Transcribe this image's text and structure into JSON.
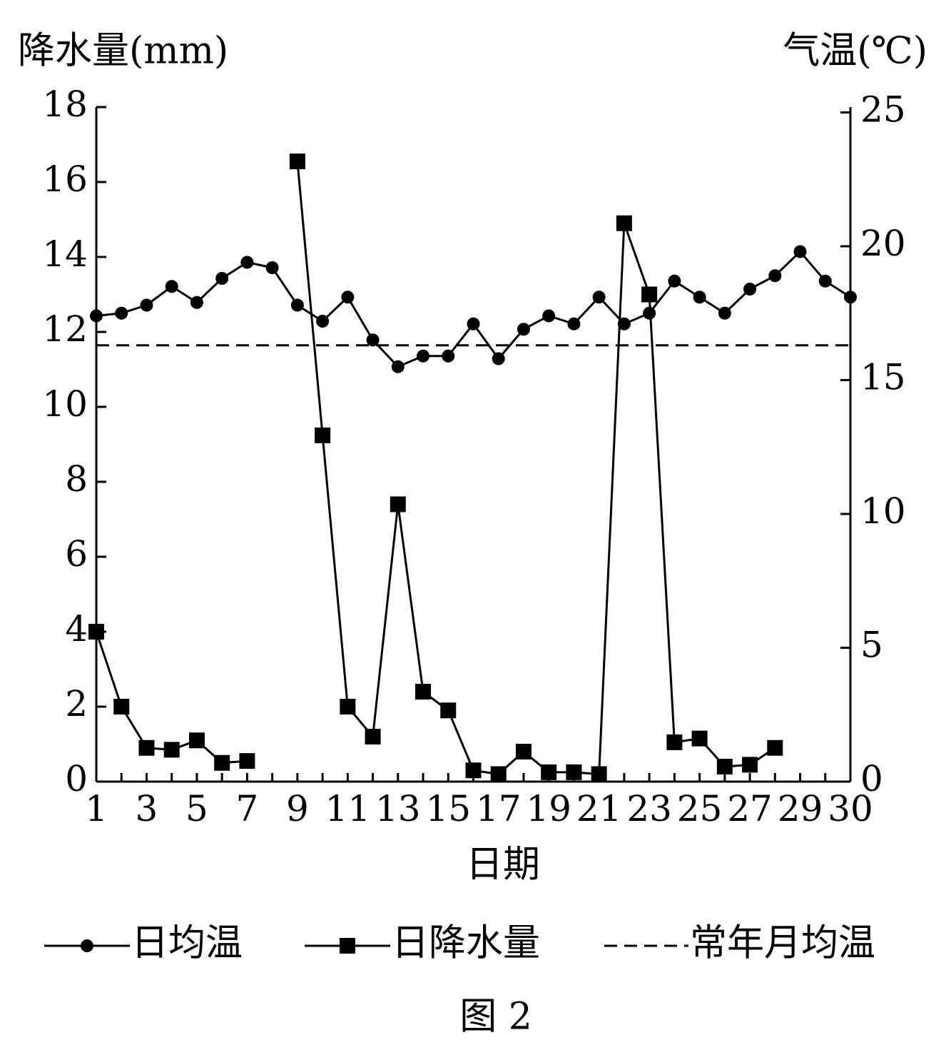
{
  "chart_data": {
    "type": "line",
    "y_label": "降水量(mm)",
    "y2_label": "气温(℃)",
    "x_label": "日期",
    "caption": "图 2",
    "categories": [
      "1",
      null,
      "3",
      null,
      "5",
      null,
      "7",
      null,
      "9",
      null,
      "11",
      null,
      "13",
      null,
      "15",
      null,
      "17",
      null,
      "19",
      null,
      "21",
      null,
      "23",
      null,
      "25",
      null,
      "27",
      null,
      "29",
      null,
      "30"
    ],
    "series": [
      {
        "name": "日均温",
        "color": "#000000",
        "marker": "circle",
        "axis": "y2",
        "values": [
          17.4,
          17.5,
          17.8,
          18.5,
          17.9,
          18.8,
          19.4,
          19.2,
          17.8,
          17.2,
          18.1,
          16.5,
          15.5,
          15.9,
          15.9,
          17.1,
          15.8,
          16.9,
          17.4,
          17.1,
          18.1,
          17.1,
          17.5,
          18.7,
          18.1,
          17.5,
          18.4,
          18.9,
          19.8,
          18.7,
          18.1
        ]
      },
      {
        "name": "日降水量",
        "color": "#000000",
        "marker": "square",
        "axis": "y",
        "values": [
          4.0,
          2.0,
          0.9,
          0.85,
          1.1,
          0.5,
          0.55,
          null,
          16.55,
          9.24,
          2.0,
          1.2,
          7.4,
          2.4,
          1.9,
          0.3,
          0.2,
          0.8,
          0.25,
          0.25,
          0.2,
          14.9,
          13.0,
          1.05,
          1.15,
          0.4,
          0.45,
          0.9,
          null,
          null,
          null
        ]
      }
    ],
    "reference_lines": [
      {
        "name": "常年月均温",
        "value": 16.3,
        "axis": "y2",
        "color": "#000000",
        "dashed": true
      }
    ],
    "ylim": [
      0,
      18
    ],
    "yticks": [
      0,
      2,
      4,
      6,
      8,
      10,
      12,
      14,
      16,
      18
    ],
    "y2lim": [
      0,
      25.2
    ],
    "y2ticks": [
      0,
      5,
      10,
      15,
      20,
      25
    ]
  }
}
